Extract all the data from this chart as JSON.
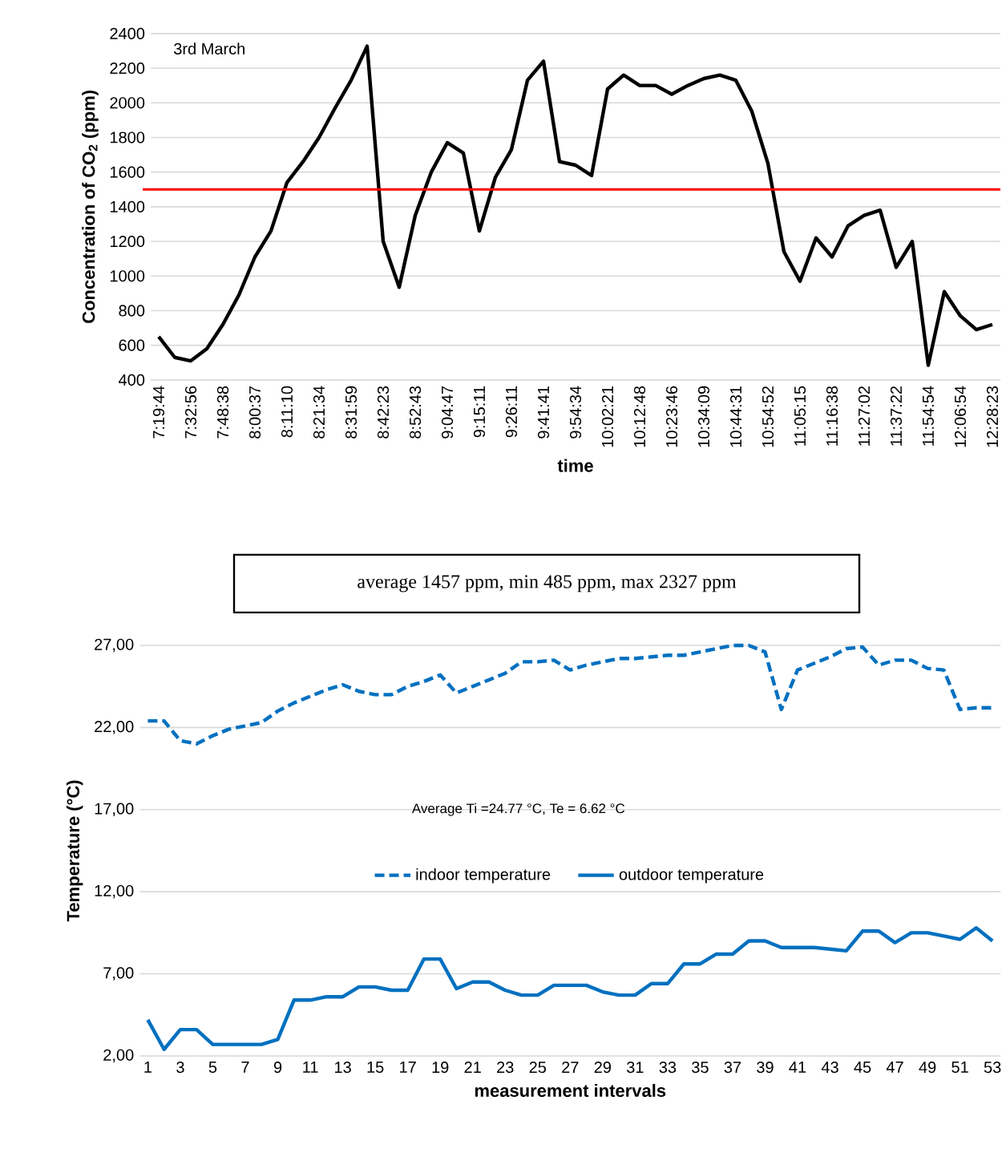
{
  "chart_data": [
    {
      "type": "line",
      "xlabel": "time",
      "ylabel": "Concentration of CO$_{2}$ (ppm)",
      "categories": [
        "7:19:44",
        null,
        "7:32:56",
        null,
        "7:48:38",
        null,
        "8:00:37",
        null,
        "8:11:10",
        null,
        "8:21:34",
        null,
        "8:31:59",
        null,
        "8:42:23",
        null,
        "8:52:43",
        null,
        "9:04:47",
        null,
        "9:15:11",
        null,
        "9:26:11",
        null,
        "9:41:41",
        null,
        "9:54:34",
        null,
        "10:02:21",
        null,
        "10:12:48",
        null,
        "10:23:46",
        null,
        "10:34:09",
        null,
        "10:44:31",
        null,
        "10:54:52",
        null,
        "11:05:15",
        null,
        "11:16:38",
        null,
        "11:27:02",
        null,
        "11:37:22",
        null,
        "11:54:54",
        null,
        "12:06:54",
        null,
        "12:28:23"
      ],
      "series": [
        {
          "color": "#000000",
          "values": [
            650,
            530,
            510,
            580,
            720,
            890,
            1110,
            1260,
            1540,
            1660,
            1800,
            1970,
            2130,
            2327,
            1200,
            935,
            1350,
            1600,
            1770,
            1710,
            1260,
            1570,
            1730,
            2130,
            2240,
            1660,
            1640,
            1580,
            2080,
            2160,
            2100,
            2100,
            2050,
            2100,
            2140,
            2160,
            2130,
            1950,
            1650,
            1140,
            970,
            1220,
            1110,
            1290,
            1350,
            1380,
            1050,
            1200,
            485,
            910,
            770,
            690,
            720
          ]
        }
      ],
      "ylim": [
        400,
        2400
      ],
      "yticks": [
        400,
        600,
        800,
        1000,
        1200,
        1400,
        1600,
        1800,
        2000,
        2200,
        2400
      ],
      "grid": "y",
      "ref_lines": [
        {
          "axis": "y",
          "value": 1500,
          "color": "#ff0000"
        }
      ],
      "annotations": [
        "3rd March",
        "average 1457 ppm, min 485 ppm, max 2327 ppm"
      ]
    },
    {
      "type": "line",
      "xlabel": "measurement intervals",
      "ylabel": "Temperature (°C)",
      "categories": [
        "1",
        null,
        "3",
        null,
        "5",
        null,
        "7",
        null,
        "9",
        null,
        "11",
        null,
        "13",
        null,
        "15",
        null,
        "17",
        null,
        "19",
        null,
        "21",
        null,
        "23",
        null,
        "25",
        null,
        "27",
        null,
        "29",
        null,
        "31",
        null,
        "33",
        null,
        "35",
        null,
        "37",
        null,
        "39",
        null,
        "41",
        null,
        "43",
        null,
        "45",
        null,
        "47",
        null,
        "49",
        null,
        "51",
        null,
        "53"
      ],
      "series": [
        {
          "name": "indoor temperature",
          "color": "#0070c0",
          "line_style": "dashed",
          "values": [
            22.4,
            22.4,
            21.2,
            21.0,
            21.5,
            21.9,
            22.1,
            22.3,
            23.0,
            23.5,
            23.9,
            24.3,
            24.6,
            24.2,
            24.0,
            24.0,
            24.5,
            24.8,
            25.2,
            24.1,
            24.5,
            24.9,
            25.3,
            26.0,
            26.0,
            26.1,
            25.5,
            25.8,
            26.0,
            26.2,
            26.2,
            26.3,
            26.4,
            26.4,
            26.6,
            26.8,
            27.0,
            27.0,
            26.6,
            23.1,
            25.5,
            25.9,
            26.3,
            26.8,
            26.9,
            25.8,
            26.1,
            26.1,
            25.6,
            25.5,
            23.1,
            23.2,
            23.2
          ]
        },
        {
          "name": "outdoor temperature",
          "color": "#0070c0",
          "line_style": "solid",
          "values": [
            4.2,
            2.4,
            3.6,
            3.6,
            2.7,
            2.7,
            2.7,
            2.7,
            3.0,
            5.4,
            5.4,
            5.6,
            5.6,
            6.2,
            6.2,
            6.0,
            6.0,
            7.9,
            7.9,
            6.1,
            6.5,
            6.5,
            6.0,
            5.7,
            5.7,
            6.3,
            6.3,
            6.3,
            5.9,
            5.7,
            5.7,
            6.4,
            6.4,
            7.6,
            7.6,
            8.2,
            8.2,
            9.0,
            9.0,
            8.6,
            8.6,
            8.6,
            8.5,
            8.4,
            9.6,
            9.6,
            8.9,
            9.5,
            9.5,
            9.3,
            9.1,
            9.8,
            9.0
          ]
        }
      ],
      "ylim": [
        2,
        27
      ],
      "yticks": [
        {
          "value": 2,
          "label": "2,00"
        },
        {
          "value": 7,
          "label": "7,00"
        },
        {
          "value": 12,
          "label": "12,00"
        },
        {
          "value": 17,
          "label": "17,00"
        },
        {
          "value": 22,
          "label": "22,00"
        },
        {
          "value": 27,
          "label": "27,00"
        }
      ],
      "grid": "y",
      "legend": "center",
      "annotations": [
        "Average Ti =24.77 °C, Te = 6.62 °C"
      ]
    }
  ]
}
